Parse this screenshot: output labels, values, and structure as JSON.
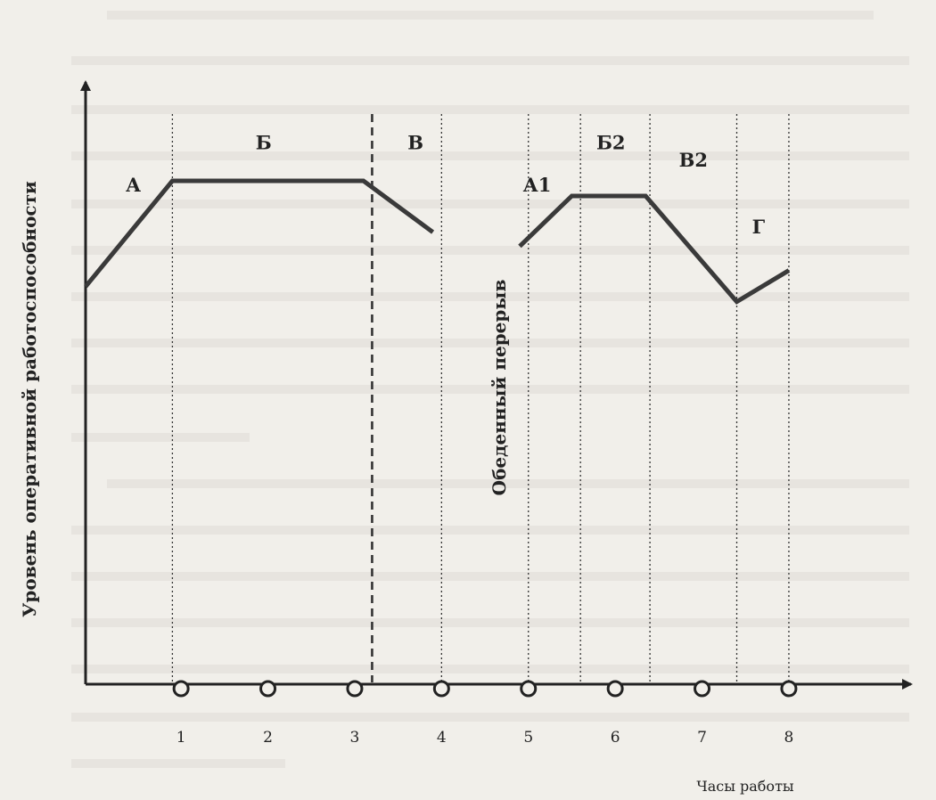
{
  "chart_data": {
    "type": "line",
    "title": "",
    "xlabel": "Часы работы",
    "ylabel": "Уровень оперативной работоспособности",
    "xlim": [
      0,
      9.06
    ],
    "ylim": [
      0,
      10
    ],
    "x_ticks": [
      "1",
      "2",
      "3",
      "4",
      "5",
      "6",
      "7",
      "8"
    ],
    "break_label": "Обеденный перерыв",
    "series": [
      {
        "x": [
          0,
          1,
          3.2,
          4
        ],
        "y": [
          7.9,
          10,
          10,
          8.98
        ]
      },
      {
        "x": [
          5,
          5.6,
          6.45,
          7.5,
          8.1
        ],
        "y": [
          8.7,
          9.7,
          9.7,
          7.6,
          8.22
        ]
      }
    ],
    "phases": [
      {
        "label": "А",
        "x": 0.55,
        "y": 9.79
      },
      {
        "label": "Б",
        "x": 2.05,
        "y": 10.63
      },
      {
        "label": "В",
        "x": 3.8,
        "y": 10.63
      },
      {
        "label": "А1",
        "x": 5.2,
        "y": 9.79
      },
      {
        "label": "Б2",
        "x": 6.05,
        "y": 10.63
      },
      {
        "label": "В2",
        "x": 7.0,
        "y": 10.28
      },
      {
        "label": "Г",
        "x": 7.75,
        "y": 8.96
      }
    ],
    "dividers": [
      {
        "x": 1,
        "style": "dotted"
      },
      {
        "x": 3.3,
        "style": "dashed"
      },
      {
        "x": 4.1,
        "style": "dotted"
      },
      {
        "x": 5.1,
        "style": "dotted"
      },
      {
        "x": 5.7,
        "style": "dotted"
      },
      {
        "x": 6.5,
        "style": "dotted"
      },
      {
        "x": 7.5,
        "style": "dotted"
      },
      {
        "x": 8.1,
        "style": "dotted"
      }
    ],
    "grid": false,
    "line_color": "#3a3a3a"
  }
}
